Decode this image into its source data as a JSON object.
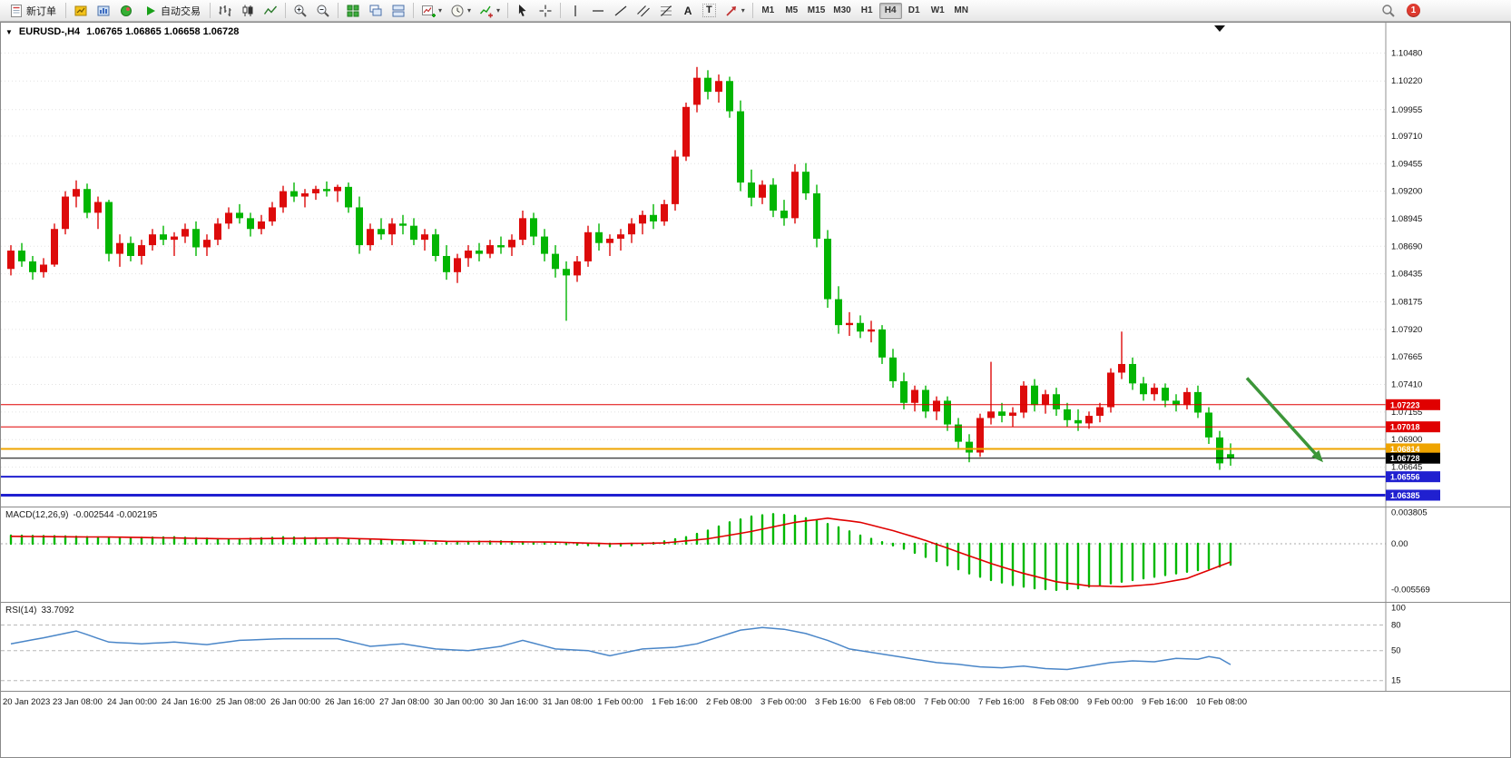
{
  "toolbar": {
    "new_order_label": "新订单",
    "autotrade_label": "自动交易",
    "timeframes": [
      "M1",
      "M5",
      "M15",
      "M30",
      "H1",
      "H4",
      "D1",
      "W1",
      "MN"
    ],
    "active_timeframe": "H4",
    "notification_count": "1",
    "text_tool_label": "A",
    "label_tool_label": "T"
  },
  "icons": {
    "collapse_triangle": "▼",
    "caret": "▾",
    "play": "▶"
  },
  "chart": {
    "symbol_period": "EURUSD-,H4",
    "ohlc_text": "1.06765 1.06865 1.06658 1.06728",
    "macd_label": "MACD(12,26,9)",
    "macd_values": "-0.002544 -0.002195",
    "rsi_label": "RSI(14)",
    "rsi_value": "33.7092"
  },
  "chart_data": {
    "type": "candlestick",
    "symbol": "EURUSD-",
    "timeframe": "H4",
    "current_ohlc": {
      "open": 1.06765,
      "high": 1.06865,
      "low": 1.06658,
      "close": 1.06728
    },
    "bull_color": "#dd0b0b",
    "bear_color": "#02b502",
    "price_axis_ticks": [
      "1.10480",
      "1.10220",
      "1.09955",
      "1.09710",
      "1.09455",
      "1.09200",
      "1.08945",
      "1.08690",
      "1.08435",
      "1.08175",
      "1.07920",
      "1.07665",
      "1.07410",
      "1.07155",
      "1.06900",
      "1.06645"
    ],
    "bars_per_label": 5,
    "time_labels": [
      "20 Jan 2023",
      "23 Jan 08:00",
      "24 Jan 00:00",
      "24 Jan 16:00",
      "25 Jan 08:00",
      "26 Jan 00:00",
      "26 Jan 16:00",
      "27 Jan 08:00",
      "30 Jan 00:00",
      "30 Jan 16:00",
      "31 Jan 08:00",
      "1 Feb 00:00",
      "1 Feb 16:00",
      "2 Feb 08:00",
      "3 Feb 00:00",
      "3 Feb 16:00",
      "6 Feb 08:00",
      "7 Feb 00:00",
      "7 Feb 16:00",
      "8 Feb 08:00",
      "9 Feb 00:00",
      "9 Feb 16:00",
      "10 Feb 08:00"
    ],
    "candles": [
      [
        1.0848,
        1.087,
        1.0842,
        1.0865
      ],
      [
        1.0865,
        1.0872,
        1.085,
        1.0855
      ],
      [
        1.0855,
        1.086,
        1.0838,
        1.0845
      ],
      [
        1.0845,
        1.0858,
        1.084,
        1.0852
      ],
      [
        1.0852,
        1.089,
        1.085,
        1.0885
      ],
      [
        1.0885,
        1.092,
        1.088,
        1.0915
      ],
      [
        1.0915,
        1.093,
        1.0905,
        1.0922
      ],
      [
        1.0922,
        1.0927,
        1.0895,
        1.09
      ],
      [
        1.09,
        1.0915,
        1.0885,
        1.091
      ],
      [
        1.091,
        1.0912,
        1.0855,
        1.0862
      ],
      [
        1.0862,
        1.088,
        1.085,
        1.0872
      ],
      [
        1.0872,
        1.0878,
        1.0855,
        1.086
      ],
      [
        1.086,
        1.0875,
        1.0852,
        1.087
      ],
      [
        1.087,
        1.0885,
        1.0865,
        1.088
      ],
      [
        1.088,
        1.0888,
        1.087,
        1.0875
      ],
      [
        1.0875,
        1.0882,
        1.086,
        1.0878
      ],
      [
        1.0878,
        1.089,
        1.0872,
        1.0885
      ],
      [
        1.0885,
        1.0892,
        1.086,
        1.0868
      ],
      [
        1.0868,
        1.088,
        1.086,
        1.0875
      ],
      [
        1.0875,
        1.0895,
        1.087,
        1.089
      ],
      [
        1.089,
        1.0905,
        1.0885,
        1.09
      ],
      [
        1.09,
        1.0908,
        1.089,
        1.0895
      ],
      [
        1.0895,
        1.09,
        1.0878,
        1.0885
      ],
      [
        1.0885,
        1.0898,
        1.088,
        1.0892
      ],
      [
        1.0892,
        1.091,
        1.0888,
        1.0905
      ],
      [
        1.0905,
        1.0925,
        1.09,
        1.092
      ],
      [
        1.092,
        1.0928,
        1.091,
        1.0915
      ],
      [
        1.0915,
        1.0922,
        1.0905,
        1.0918
      ],
      [
        1.0918,
        1.0925,
        1.0912,
        1.0922
      ],
      [
        1.0922,
        1.0929,
        1.0915,
        1.092
      ],
      [
        1.092,
        1.0926,
        1.091,
        1.0924
      ],
      [
        1.0924,
        1.0928,
        1.09,
        1.0905
      ],
      [
        1.0905,
        1.0915,
        1.0862,
        1.087
      ],
      [
        1.087,
        1.089,
        1.0865,
        1.0885
      ],
      [
        1.0885,
        1.0895,
        1.0875,
        1.088
      ],
      [
        1.088,
        1.0895,
        1.087,
        1.089
      ],
      [
        1.089,
        1.0898,
        1.088,
        1.0888
      ],
      [
        1.0888,
        1.0895,
        1.087,
        1.0875
      ],
      [
        1.0875,
        1.0885,
        1.0865,
        1.088
      ],
      [
        1.088,
        1.0885,
        1.0855,
        1.086
      ],
      [
        1.086,
        1.087,
        1.0838,
        1.0845
      ],
      [
        1.0845,
        1.0862,
        1.0835,
        1.0858
      ],
      [
        1.0858,
        1.087,
        1.085,
        1.0865
      ],
      [
        1.0865,
        1.0872,
        1.0855,
        1.0862
      ],
      [
        1.0862,
        1.0875,
        1.0858,
        1.087
      ],
      [
        1.087,
        1.0878,
        1.0862,
        1.0868
      ],
      [
        1.0868,
        1.088,
        1.086,
        1.0875
      ],
      [
        1.0875,
        1.0902,
        1.087,
        1.0895
      ],
      [
        1.0895,
        1.09,
        1.087,
        1.0878
      ],
      [
        1.0878,
        1.0885,
        1.0855,
        1.0862
      ],
      [
        1.0862,
        1.087,
        1.084,
        1.0848
      ],
      [
        1.0848,
        1.0855,
        1.08,
        1.0842
      ],
      [
        1.0842,
        1.086,
        1.0836,
        1.0855
      ],
      [
        1.0855,
        1.0888,
        1.085,
        1.0882
      ],
      [
        1.0882,
        1.089,
        1.0865,
        1.0872
      ],
      [
        1.0872,
        1.088,
        1.086,
        1.0876
      ],
      [
        1.0876,
        1.0885,
        1.0865,
        1.088
      ],
      [
        1.088,
        1.0895,
        1.0872,
        1.089
      ],
      [
        1.089,
        1.0902,
        1.088,
        1.0898
      ],
      [
        1.0898,
        1.0908,
        1.0885,
        1.0892
      ],
      [
        1.0892,
        1.0912,
        1.0888,
        1.0908
      ],
      [
        1.0908,
        1.0958,
        1.0902,
        1.0952
      ],
      [
        1.0952,
        1.1002,
        1.0948,
        1.0998
      ],
      [
        1.1,
        1.1035,
        1.0993,
        1.1025
      ],
      [
        1.1025,
        1.1032,
        1.1005,
        1.1012
      ],
      [
        1.1012,
        1.1028,
        1.1002,
        1.1022
      ],
      [
        1.1022,
        1.1026,
        1.0988,
        1.0994
      ],
      [
        1.0994,
        1.1004,
        1.092,
        1.0928
      ],
      [
        1.0928,
        1.094,
        1.0906,
        1.0914
      ],
      [
        1.0914,
        1.093,
        1.0908,
        1.0926
      ],
      [
        1.0926,
        1.0932,
        1.0896,
        1.0902
      ],
      [
        1.0902,
        1.0912,
        1.0888,
        1.0895
      ],
      [
        1.0895,
        1.0945,
        1.089,
        1.0938
      ],
      [
        1.0938,
        1.0946,
        1.0912,
        1.0918
      ],
      [
        1.0918,
        1.0926,
        1.0868,
        1.0876
      ],
      [
        1.0876,
        1.0884,
        1.0812,
        1.082
      ],
      [
        1.082,
        1.0832,
        1.0788,
        1.0796
      ],
      [
        1.0796,
        1.0808,
        1.0786,
        1.0798
      ],
      [
        1.0798,
        1.0805,
        1.0784,
        1.079
      ],
      [
        1.079,
        1.08,
        1.078,
        1.0792
      ],
      [
        1.0792,
        1.0796,
        1.076,
        1.0766
      ],
      [
        1.0766,
        1.0774,
        1.0738,
        1.0744
      ],
      [
        1.0744,
        1.0752,
        1.0718,
        1.0724
      ],
      [
        1.0724,
        1.074,
        1.0716,
        1.0736
      ],
      [
        1.0736,
        1.074,
        1.071,
        1.0716
      ],
      [
        1.0716,
        1.073,
        1.0708,
        1.0726
      ],
      [
        1.0726,
        1.073,
        1.0698,
        1.0704
      ],
      [
        1.0704,
        1.071,
        1.0682,
        1.0688
      ],
      [
        1.0688,
        1.0695,
        1.0669,
        1.0678
      ],
      [
        1.0678,
        1.0714,
        1.0674,
        1.071
      ],
      [
        1.071,
        1.0762,
        1.0704,
        1.0716
      ],
      [
        1.0716,
        1.0724,
        1.0706,
        1.0712
      ],
      [
        1.0712,
        1.072,
        1.0702,
        1.0715
      ],
      [
        1.0715,
        1.0744,
        1.071,
        1.074
      ],
      [
        1.074,
        1.0746,
        1.0716,
        1.0722
      ],
      [
        1.0722,
        1.0736,
        1.0714,
        1.0732
      ],
      [
        1.0732,
        1.0738,
        1.0712,
        1.0718
      ],
      [
        1.0718,
        1.0724,
        1.0702,
        1.0708
      ],
      [
        1.0708,
        1.0718,
        1.0698,
        1.0705
      ],
      [
        1.0705,
        1.0716,
        1.07,
        1.0712
      ],
      [
        1.0712,
        1.0724,
        1.0706,
        1.072
      ],
      [
        1.072,
        1.0756,
        1.0715,
        1.0752
      ],
      [
        1.0752,
        1.079,
        1.0746,
        1.076
      ],
      [
        1.076,
        1.0766,
        1.0736,
        1.0742
      ],
      [
        1.0742,
        1.0748,
        1.0726,
        1.0732
      ],
      [
        1.0732,
        1.0742,
        1.0726,
        1.0738
      ],
      [
        1.0738,
        1.0742,
        1.072,
        1.0726
      ],
      [
        1.0726,
        1.0732,
        1.0716,
        1.0722
      ],
      [
        1.0722,
        1.0738,
        1.0718,
        1.0734
      ],
      [
        1.0734,
        1.074,
        1.071,
        1.0715
      ],
      [
        1.0715,
        1.072,
        1.0686,
        1.0692
      ],
      [
        1.0692,
        1.0698,
        1.0662,
        1.0668
      ],
      [
        1.06765,
        1.06865,
        1.06658,
        1.06728
      ]
    ],
    "level_lines": [
      {
        "price": 1.07223,
        "color": "#e00000",
        "width": 1,
        "label": "1.07223"
      },
      {
        "price": 1.07018,
        "color": "#e00000",
        "width": 1,
        "label": "1.07018"
      },
      {
        "price": 1.06814,
        "color": "#efa400",
        "width": 2,
        "label": "1.06814"
      },
      {
        "price": 1.06728,
        "color": "#000000",
        "width": 1,
        "label": "1.06728"
      },
      {
        "price": 1.06556,
        "color": "#2020d0",
        "width": 2,
        "label": "1.06556"
      },
      {
        "price": 1.06385,
        "color": "#2020d0",
        "width": 3,
        "label": "1.06385"
      }
    ],
    "macd": {
      "histogram_color": "#00b800",
      "signal_color": "#e00000",
      "axis_ticks": [
        "0.003805",
        "0.00",
        "-0.005569"
      ],
      "histogram": [
        0.001,
        0.00098,
        0.00096,
        0.00094,
        0.00092,
        0.0009,
        0.00086,
        0.00082,
        0.00078,
        0.00074,
        0.0007,
        0.00072,
        0.00074,
        0.00076,
        0.00078,
        0.0008,
        0.00074,
        0.00068,
        0.00062,
        0.00056,
        0.0005,
        0.00056,
        0.00062,
        0.00068,
        0.00074,
        0.0008,
        0.00076,
        0.00072,
        0.00068,
        0.00064,
        0.0006,
        0.00056,
        0.00052,
        0.00048,
        0.00044,
        0.0004,
        0.00036,
        0.00032,
        0.00028,
        0.00024,
        0.0002,
        0.00022,
        0.00024,
        0.00026,
        0.00028,
        0.0003,
        0.00024,
        0.00018,
        0.00012,
        6e-05,
        0.0,
        -6e-05,
        -0.00012,
        -0.00018,
        -0.00024,
        -0.0003,
        -0.00023,
        -0.00017,
        -0.0001,
        0.0001,
        0.0003,
        0.00055,
        0.0008,
        0.0012,
        0.0016,
        0.0021,
        0.0026,
        0.00295,
        0.0033,
        0.00345,
        0.0036,
        0.0035,
        0.0034,
        0.0031,
        0.0028,
        0.0024,
        0.002,
        0.0015,
        0.001,
        0.0006,
        0.0002,
        -0.0002,
        -0.0006,
        -0.0011,
        -0.0016,
        -0.0021,
        -0.0026,
        -0.0031,
        -0.0036,
        -0.004,
        -0.0044,
        -0.0047,
        -0.005,
        -0.0052,
        -0.0054,
        -0.0055,
        -0.0056,
        -0.0055,
        -0.0054,
        -0.0052,
        -0.005,
        -0.0048,
        -0.0046,
        -0.0044,
        -0.0042,
        -0.004,
        -0.0038,
        -0.0036,
        -0.0034,
        -0.0032,
        -0.003,
        -0.00277,
        -0.002544
      ],
      "signal": [
        0.0009,
        0.00089,
        0.00088,
        0.00087,
        0.00086,
        0.00085,
        0.00084,
        0.00083,
        0.00082,
        0.00081,
        0.0008,
        0.00078,
        0.00076,
        0.00074,
        0.00072,
        0.0007,
        0.00068,
        0.00066,
        0.00064,
        0.00062,
        0.0006,
        0.00061,
        0.00062,
        0.00063,
        0.00064,
        0.00065,
        0.00066,
        0.00067,
        0.00068,
        0.00069,
        0.0007,
        0.00066,
        0.00062,
        0.00058,
        0.00054,
        0.0005,
        0.00046,
        0.00042,
        0.00038,
        0.00034,
        0.0003,
        0.00029,
        0.00028,
        0.00027,
        0.00026,
        0.00025,
        0.00024,
        0.00023,
        0.00022,
        0.00021,
        0.0002,
        0.00016,
        0.00012,
        8e-05,
        4e-05,
        0.0,
        2e-05,
        4e-05,
        6e-05,
        8e-05,
        0.0001,
        0.00022,
        0.00035,
        0.00047,
        0.0006,
        0.00082,
        0.00105,
        0.00127,
        0.0015,
        0.00177,
        0.00205,
        0.00232,
        0.0026,
        0.00277,
        0.00293,
        0.0031,
        0.00293,
        0.00277,
        0.0026,
        0.00227,
        0.00193,
        0.0016,
        0.0012,
        0.0008,
        0.0004,
        -7e-05,
        -0.00053,
        -0.001,
        -0.00147,
        -0.00193,
        -0.0024,
        -0.0028,
        -0.0032,
        -0.0036,
        -0.00393,
        -0.00427,
        -0.0046,
        -0.00477,
        -0.00493,
        -0.0051,
        -0.00513,
        -0.00517,
        -0.0052,
        -0.0051,
        -0.005,
        -0.0049,
        -0.00467,
        -0.00443,
        -0.0042,
        -0.0037,
        -0.0032,
        -0.0027,
        -0.002195
      ]
    },
    "rsi": {
      "line_color": "#4a86c8",
      "levels": [
        80,
        50,
        15
      ],
      "axis_ticks": [
        "100",
        "80",
        "50",
        "15"
      ],
      "values": [
        58,
        60.3,
        62.7,
        65,
        67.7,
        70.3,
        73,
        68.7,
        64.3,
        60,
        59.3,
        58.7,
        58,
        58.7,
        59.3,
        60,
        59,
        58,
        57,
        58.7,
        60.3,
        62,
        62.5,
        63,
        63.5,
        64,
        64,
        64,
        64,
        64,
        64,
        61,
        58,
        55,
        56,
        57,
        58,
        56,
        54,
        52,
        51.3,
        50.7,
        50,
        51.7,
        53.3,
        55,
        58.5,
        62,
        58.7,
        55.3,
        52,
        51.3,
        50.7,
        50,
        47,
        44,
        46.7,
        49.3,
        52,
        52.7,
        53.3,
        54,
        56,
        58,
        62,
        66,
        70,
        74,
        75.5,
        77,
        76,
        75,
        72.5,
        70,
        66,
        62,
        57,
        52,
        50,
        48,
        46,
        44,
        42,
        40,
        38,
        36,
        35,
        34,
        32.5,
        31,
        30.5,
        30,
        31,
        32,
        30.5,
        29,
        28.5,
        28,
        30,
        32,
        34,
        36,
        37,
        38,
        37.5,
        37,
        39,
        41,
        40.5,
        40,
        43,
        41,
        33.7
      ]
    },
    "arrow_annotation": {
      "from_bar": 113.5,
      "from_price": 1.0747,
      "to_bar": 120.5,
      "to_price": 1.0669,
      "color": "#3c9639"
    }
  }
}
